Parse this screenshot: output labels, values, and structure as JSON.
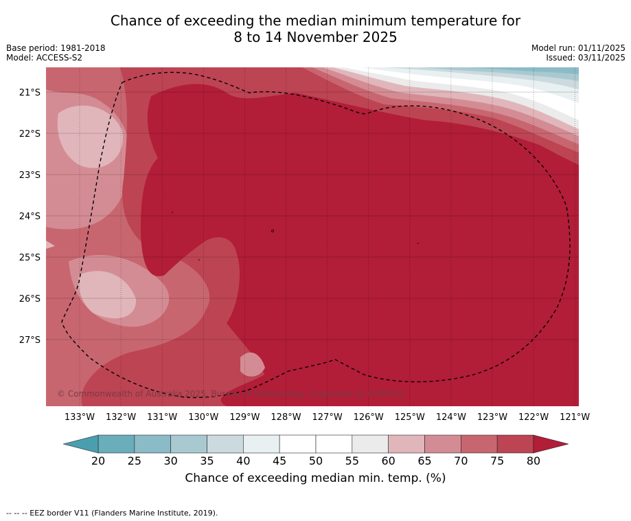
{
  "title": {
    "line1": "Chance of exceeding the median minimum temperature for",
    "line2": "8 to 14 November 2025"
  },
  "meta": {
    "base_period": "Base period: 1981-2018",
    "model": "Model: ACCESS-S2",
    "model_run": "Model run: 01/11/2025",
    "issued": "Issued: 03/11/2025"
  },
  "map": {
    "lat_labels": [
      "21°S",
      "22°S",
      "23°S",
      "24°S",
      "25°S",
      "26°S",
      "27°S"
    ],
    "lon_labels": [
      "133°W",
      "132°W",
      "131°W",
      "130°W",
      "129°W",
      "128°W",
      "127°W",
      "126°W",
      "125°W",
      "124°W",
      "123°W",
      "122°W",
      "121°W"
    ],
    "copyright": "© Commonwealth of Australia 2025, Bureau of Meteorology, supported by COSPPac"
  },
  "colorbar": {
    "ticks": [
      "20",
      "25",
      "30",
      "35",
      "40",
      "45",
      "50",
      "55",
      "60",
      "65",
      "70",
      "75",
      "80"
    ],
    "colors": [
      "#6aaebb",
      "#8bbbc6",
      "#a8c9cf",
      "#cbdadf",
      "#e9f0f2",
      "#ffffff",
      "#ffffff",
      "#ebebeb",
      "#e0b6bb",
      "#d48c94",
      "#c86670",
      "#bd4453"
    ],
    "low_color": "#4a9fae",
    "high_color": "#b21d38",
    "title": "Chance of exceeding median min. temp. (%)"
  },
  "footer": "--  --  -- EEZ border V11 (Flanders Marine Institute, 2019)."
}
